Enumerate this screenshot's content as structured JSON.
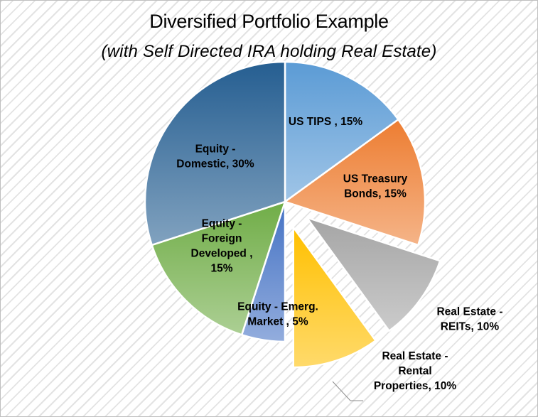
{
  "chart_data": {
    "type": "pie",
    "title": "Diversified Portfolio Example",
    "subtitle": "(with Self Directed IRA holding Real Estate)",
    "slices": [
      {
        "category": "US TIPS",
        "value": 15,
        "label_lines": [
          "US TIPS , 15%"
        ],
        "color": "#5b9bd5",
        "exploded": false
      },
      {
        "category": "US Treasury Bonds",
        "value": 15,
        "label_lines": [
          "US Treasury",
          "Bonds, 15%"
        ],
        "color": "#ed7d31",
        "exploded": false
      },
      {
        "category": "Real Estate - REITs",
        "value": 10,
        "label_lines": [
          "Real Estate -",
          "REITs, 10%"
        ],
        "color": "#a5a5a5",
        "exploded": true
      },
      {
        "category": "Real Estate - Rental Properties",
        "value": 10,
        "label_lines": [
          "Real Estate -",
          "Rental",
          "Properties, 10%"
        ],
        "color": "#ffc000",
        "exploded": true
      },
      {
        "category": "Equity - Emerg. Market",
        "value": 5,
        "label_lines": [
          "Equity - Emerg.",
          "Market , 5%"
        ],
        "color": "#4472c4",
        "exploded": false
      },
      {
        "category": "Equity - Foreign Developed",
        "value": 15,
        "label_lines": [
          "Equity -",
          "Foreign",
          "Developed ,",
          "15%"
        ],
        "color": "#70ad47",
        "exploded": false
      },
      {
        "category": "Equity - Domestic",
        "value": 30,
        "label_lines": [
          "Equity -",
          "Domestic, 30%"
        ],
        "color": "#255e91",
        "exploded": false
      }
    ],
    "start_angle": "12 o'clock",
    "direction": "clockwise",
    "legend": "none"
  }
}
